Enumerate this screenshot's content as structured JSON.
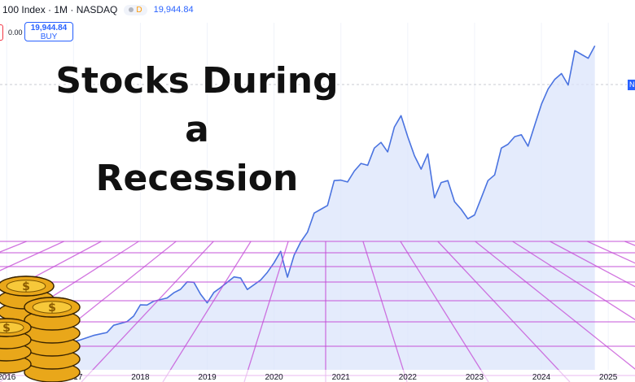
{
  "header": {
    "symbol": "100 Index · 1M · NASDAQ",
    "badge_letter": "D",
    "last_price": "19,944.84"
  },
  "order": {
    "change": "0.00",
    "buy_price": "19,944.84",
    "buy_label": "BUY"
  },
  "price_tag_letter": "N",
  "headline": {
    "line1": "Stocks During a",
    "line2": "Recession"
  },
  "colors": {
    "line": "#4a73e0",
    "fill": "#dbe4fb",
    "grid": "#c44ad6",
    "price_tag": "#2962ff",
    "coin": "#f2b824"
  },
  "icons": [
    "gold-coin-stack-icon"
  ],
  "chart_data": {
    "type": "area",
    "title": "",
    "xlabel": "",
    "ylabel": "",
    "x_ticks": [
      "2016",
      "2017",
      "2018",
      "2019",
      "2020",
      "2021",
      "2022",
      "2023",
      "2024",
      "2025"
    ],
    "x_range": [
      2015.9,
      2025.4
    ],
    "ylim": [
      3000,
      21500
    ],
    "series": [
      {
        "values": [
          [
            2016.9,
            4380
          ],
          [
            2017.1,
            4560
          ],
          [
            2017.3,
            4800
          ],
          [
            2017.5,
            4950
          ],
          [
            2017.6,
            5330
          ],
          [
            2017.8,
            5520
          ],
          [
            2017.9,
            5810
          ],
          [
            2018.0,
            6400
          ],
          [
            2018.1,
            6390
          ],
          [
            2018.2,
            6590
          ],
          [
            2018.4,
            6760
          ],
          [
            2018.5,
            7030
          ],
          [
            2018.6,
            7210
          ],
          [
            2018.7,
            7600
          ],
          [
            2018.8,
            7580
          ],
          [
            2018.9,
            6960
          ],
          [
            2019.0,
            6500
          ],
          [
            2019.1,
            7050
          ],
          [
            2019.2,
            7300
          ],
          [
            2019.4,
            7860
          ],
          [
            2019.5,
            7800
          ],
          [
            2019.6,
            7200
          ],
          [
            2019.8,
            7700
          ],
          [
            2019.9,
            8100
          ],
          [
            2020.0,
            8600
          ],
          [
            2020.1,
            9200
          ],
          [
            2020.15,
            8500
          ],
          [
            2020.2,
            7850
          ],
          [
            2020.3,
            9000
          ],
          [
            2020.4,
            9700
          ],
          [
            2020.5,
            10200
          ],
          [
            2020.6,
            11200
          ],
          [
            2020.7,
            11400
          ],
          [
            2020.8,
            11600
          ],
          [
            2020.9,
            12900
          ],
          [
            2021.0,
            12925
          ],
          [
            2021.1,
            12830
          ],
          [
            2021.2,
            13400
          ],
          [
            2021.3,
            13800
          ],
          [
            2021.4,
            13700
          ],
          [
            2021.5,
            14600
          ],
          [
            2021.6,
            14900
          ],
          [
            2021.7,
            14400
          ],
          [
            2021.8,
            15700
          ],
          [
            2021.9,
            16300
          ],
          [
            2022.0,
            15200
          ],
          [
            2022.1,
            14200
          ],
          [
            2022.2,
            13500
          ],
          [
            2022.3,
            14300
          ],
          [
            2022.4,
            12000
          ],
          [
            2022.5,
            12800
          ],
          [
            2022.6,
            12900
          ],
          [
            2022.7,
            11800
          ],
          [
            2022.8,
            11400
          ],
          [
            2022.9,
            10900
          ],
          [
            2023.0,
            11100
          ],
          [
            2023.1,
            12000
          ],
          [
            2023.2,
            12900
          ],
          [
            2023.3,
            13200
          ],
          [
            2023.4,
            14600
          ],
          [
            2023.5,
            14800
          ],
          [
            2023.6,
            15200
          ],
          [
            2023.7,
            15300
          ],
          [
            2023.8,
            14700
          ],
          [
            2023.9,
            15800
          ],
          [
            2024.0,
            16900
          ],
          [
            2024.1,
            17700
          ],
          [
            2024.2,
            18200
          ],
          [
            2024.3,
            18500
          ],
          [
            2024.4,
            17900
          ],
          [
            2024.5,
            19700
          ],
          [
            2024.6,
            19500
          ],
          [
            2024.7,
            19300
          ],
          [
            2024.8,
            19950
          ]
        ]
      }
    ]
  }
}
